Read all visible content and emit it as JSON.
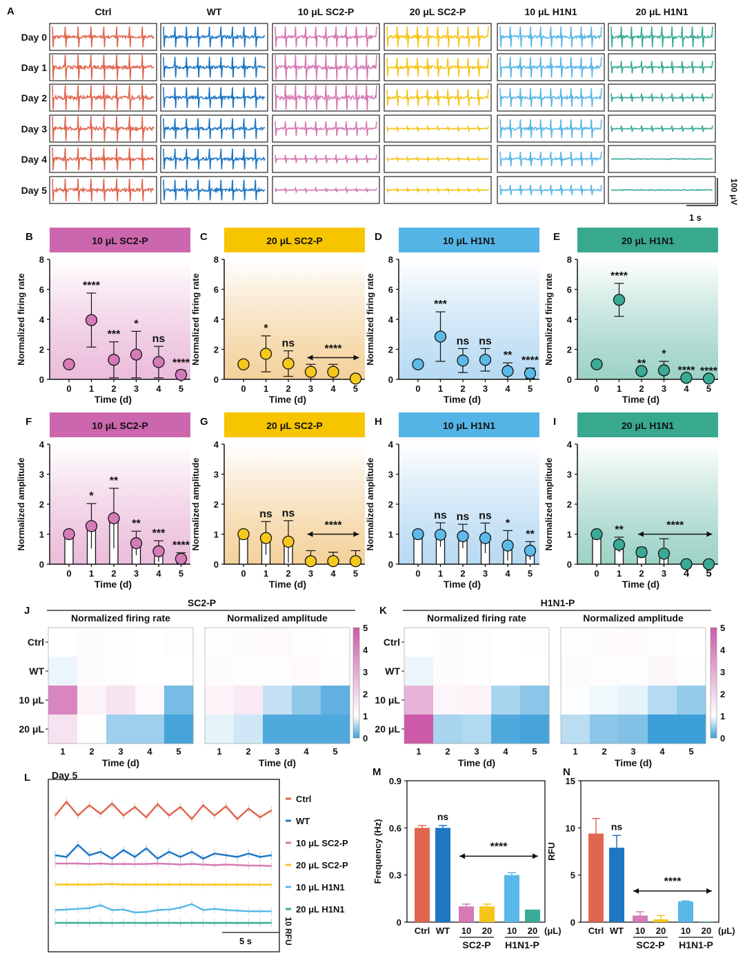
{
  "panel_letters": {
    "A": "A",
    "B": "B",
    "C": "C",
    "D": "D",
    "E": "E",
    "F": "F",
    "G": "G",
    "H": "H",
    "I": "I",
    "J": "J",
    "K": "K",
    "L": "L",
    "M": "M",
    "N": "N"
  },
  "colors": {
    "ctrl": "#e06650",
    "wt": "#1f77c4",
    "sc10": "#d67ab6",
    "sc20": "#f5c518",
    "h10": "#5ab8e8",
    "h20": "#3aab97",
    "heat_high": "#cc5aa8",
    "heat_low": "#3d9fd9",
    "heat_mid": "#ffffff"
  },
  "traces": {
    "columns": [
      "Ctrl",
      "WT",
      "10 μL SC2-P",
      "20 μL SC2-P",
      "10 μL H1N1",
      "20 μL H1N1"
    ],
    "rows": [
      "Day 0",
      "Day 1",
      "Day 2",
      "Day 3",
      "Day 4",
      "Day 5"
    ],
    "amplitude_levels": [
      [
        1.0,
        1.0,
        1.0,
        1.0,
        1.0,
        1.0
      ],
      [
        1.2,
        1.0,
        1.3,
        0.9,
        1.0,
        0.6
      ],
      [
        1.4,
        1.0,
        1.5,
        0.8,
        0.9,
        0.4
      ],
      [
        1.3,
        1.0,
        0.7,
        0.2,
        0.9,
        0.3
      ],
      [
        1.1,
        1.0,
        0.4,
        0.15,
        0.7,
        0.05
      ],
      [
        1.1,
        1.0,
        0.2,
        0.15,
        0.5,
        0.05
      ]
    ],
    "scale_voltage": "100 μV",
    "scale_time": "1 s"
  },
  "y_axis_labels": {
    "firing": "Normalized firing rate",
    "amplitude": "Normalized amplitude",
    "time": "Time (d)"
  },
  "chart_data": [
    {
      "id": "B",
      "type": "scatter",
      "title": "10 μL SC2-P",
      "xlabel": "Time (d)",
      "ylabel": "Normalized firing rate",
      "ylim": [
        0,
        8
      ],
      "x": [
        0,
        1,
        2,
        3,
        4,
        5
      ],
      "values": [
        1.0,
        3.95,
        1.3,
        1.65,
        1.15,
        0.3
      ],
      "err": [
        0,
        1.8,
        1.2,
        1.55,
        1.05,
        0.3
      ],
      "sig": [
        "",
        "****",
        "***",
        "*",
        "ns",
        "****"
      ]
    },
    {
      "id": "C",
      "type": "scatter",
      "title": "20 μL SC2-P",
      "xlabel": "Time (d)",
      "ylabel": "Normalized firing rate",
      "ylim": [
        0,
        8
      ],
      "x": [
        0,
        1,
        2,
        3,
        4,
        5
      ],
      "values": [
        1.0,
        1.7,
        1.05,
        0.5,
        0.5,
        0.05
      ],
      "err": [
        0,
        1.2,
        0.85,
        0.5,
        0.5,
        0.05
      ],
      "sig": [
        "",
        "*",
        "ns",
        "",
        "",
        ""
      ],
      "bracket": {
        "from": 3,
        "to": 5,
        "label": "****"
      }
    },
    {
      "id": "D",
      "type": "scatter",
      "title": "10 μL H1N1",
      "xlabel": "Time (d)",
      "ylabel": "Normalized firing rate",
      "ylim": [
        0,
        8
      ],
      "x": [
        0,
        1,
        2,
        3,
        4,
        5
      ],
      "values": [
        1.0,
        2.85,
        1.25,
        1.3,
        0.55,
        0.4
      ],
      "err": [
        0,
        1.65,
        0.8,
        0.75,
        0.55,
        0.35
      ],
      "sig": [
        "",
        "***",
        "ns",
        "ns",
        "**",
        "****"
      ]
    },
    {
      "id": "E",
      "type": "scatter",
      "title": "20 μL H1N1",
      "xlabel": "Time (d)",
      "ylabel": "Normalized firing rate",
      "ylim": [
        0,
        8
      ],
      "x": [
        0,
        1,
        2,
        3,
        4,
        5
      ],
      "values": [
        1.0,
        5.3,
        0.55,
        0.6,
        0.1,
        0.05
      ],
      "err": [
        0,
        1.1,
        0,
        0.6,
        0,
        0
      ],
      "sig": [
        "",
        "****",
        "**",
        "*",
        "****",
        "****"
      ]
    },
    {
      "id": "F",
      "type": "bar",
      "title": "10 μL SC2-P",
      "xlabel": "Time (d)",
      "ylabel": "Normalized amplitude",
      "ylim": [
        0,
        4
      ],
      "x": [
        0,
        1,
        2,
        3,
        4,
        5
      ],
      "values": [
        1.0,
        1.27,
        1.53,
        0.7,
        0.43,
        0.18
      ],
      "err": [
        0,
        0.75,
        1.0,
        0.4,
        0.35,
        0.2
      ],
      "sig": [
        "",
        "*",
        "**",
        "**",
        "***",
        "****"
      ]
    },
    {
      "id": "G",
      "type": "bar",
      "title": "20 μL SC2-P",
      "xlabel": "Time (d)",
      "ylabel": "Normalized amplitude",
      "ylim": [
        0,
        4
      ],
      "x": [
        0,
        1,
        2,
        3,
        4,
        5
      ],
      "values": [
        1.0,
        0.87,
        0.75,
        0.1,
        0.1,
        0.1
      ],
      "err": [
        0,
        0.55,
        0.7,
        0.35,
        0.3,
        0.35
      ],
      "sig": [
        "",
        "ns",
        "ns",
        "",
        "",
        ""
      ],
      "bracket": {
        "from": 3,
        "to": 5,
        "label": "****"
      }
    },
    {
      "id": "H",
      "type": "bar",
      "title": "10 μL H1N1",
      "xlabel": "Time (d)",
      "ylabel": "Normalized amplitude",
      "ylim": [
        0,
        4
      ],
      "x": [
        0,
        1,
        2,
        3,
        4,
        5
      ],
      "values": [
        1.0,
        0.98,
        0.93,
        0.87,
        0.62,
        0.45
      ],
      "err": [
        0,
        0.4,
        0.4,
        0.5,
        0.5,
        0.3
      ],
      "sig": [
        "",
        "ns",
        "ns",
        "ns",
        "*",
        "**"
      ]
    },
    {
      "id": "I",
      "type": "bar",
      "title": "20 μL H1N1",
      "xlabel": "Time (d)",
      "ylabel": "Normalized amplitude",
      "ylim": [
        0,
        4
      ],
      "x": [
        0,
        1,
        2,
        3,
        4,
        5
      ],
      "values": [
        1.0,
        0.65,
        0.4,
        0.35,
        0.0,
        0.0
      ],
      "err": [
        0,
        0.25,
        0.15,
        0.5,
        0,
        0
      ],
      "sig": [
        "",
        "**",
        "",
        "",
        "",
        ""
      ],
      "bracket": {
        "from": 2,
        "to": 5,
        "label": "****"
      },
      "bold_ticks": [
        4,
        5
      ]
    },
    {
      "id": "J",
      "type": "heatmap",
      "group_title": "SC2-P",
      "subtitles": [
        "Normalized firing rate",
        "Normalized amplitude"
      ],
      "rows": [
        "Ctrl",
        "WT",
        "10 μL",
        "20 μL"
      ],
      "x": [
        1,
        2,
        3,
        4,
        5
      ],
      "xlabel": "Time (d)",
      "matrices": [
        [
          [
            1.0,
            1.1,
            1.05,
            1.0,
            1.05
          ],
          [
            0.9,
            1.1,
            1.05,
            1.0,
            1.0
          ],
          [
            3.95,
            1.3,
            1.65,
            1.15,
            0.3
          ],
          [
            1.7,
            1.05,
            0.5,
            0.5,
            0.05
          ]
        ],
        [
          [
            1.05,
            1.1,
            1.15,
            1.05,
            1.0
          ],
          [
            1.1,
            1.05,
            1.05,
            1.15,
            1.05
          ],
          [
            1.27,
            1.53,
            0.7,
            0.43,
            0.18
          ],
          [
            0.87,
            0.75,
            0.1,
            0.1,
            0.1
          ]
        ]
      ],
      "colorbar": {
        "min": 0,
        "max": 5,
        "ticks": [
          0,
          1,
          2,
          3,
          4,
          5
        ]
      }
    },
    {
      "id": "K",
      "type": "heatmap",
      "group_title": "H1N1-P",
      "subtitles": [
        "Normalized firing rate",
        "Normalized amplitude"
      ],
      "rows": [
        "Ctrl",
        "WT",
        "10 μL",
        "20 μL"
      ],
      "x": [
        1,
        2,
        3,
        4,
        5
      ],
      "xlabel": "Time (d)",
      "matrices": [
        [
          [
            1.0,
            1.1,
            1.05,
            1.0,
            1.05
          ],
          [
            0.9,
            1.1,
            1.05,
            1.0,
            1.0
          ],
          [
            2.85,
            1.25,
            1.3,
            0.55,
            0.4
          ],
          [
            5.3,
            0.55,
            0.6,
            0.1,
            0.05
          ]
        ],
        [
          [
            1.05,
            1.1,
            1.15,
            1.05,
            1.0
          ],
          [
            1.1,
            1.05,
            1.05,
            1.2,
            1.05
          ],
          [
            0.98,
            0.93,
            0.87,
            0.62,
            0.45
          ],
          [
            0.65,
            0.4,
            0.35,
            0.0,
            0.0
          ]
        ]
      ],
      "colorbar": {
        "min": 0,
        "max": 5,
        "ticks": [
          0,
          1,
          2,
          3,
          4,
          5
        ]
      }
    },
    {
      "id": "L",
      "type": "line",
      "title": "Day 5",
      "series": [
        {
          "name": "Ctrl",
          "values": [
            0.55,
            0.95,
            0.55,
            0.85,
            0.6,
            0.9,
            0.55,
            0.8,
            0.5,
            0.88,
            0.55,
            0.8,
            0.45,
            0.85,
            0.55,
            0.82,
            0.45,
            0.75,
            0.5,
            0.7
          ]
        },
        {
          "name": "WT",
          "values": [
            0.5,
            0.45,
            0.8,
            0.5,
            0.6,
            0.4,
            0.65,
            0.45,
            0.7,
            0.4,
            0.6,
            0.45,
            0.6,
            0.4,
            0.55,
            0.5,
            0.45,
            0.55,
            0.45,
            0.5
          ]
        },
        {
          "name": "10 μL SC2-P",
          "values": [
            0.5,
            0.5,
            0.5,
            0.48,
            0.5,
            0.47,
            0.48,
            0.47,
            0.48,
            0.5,
            0.48,
            0.45,
            0.48,
            0.45,
            0.42,
            0.45,
            0.43,
            0.4,
            0.4,
            0.38
          ]
        },
        {
          "name": "20 μL SC2-P",
          "values": [
            0.5,
            0.5,
            0.52,
            0.5,
            0.52,
            0.55,
            0.5,
            0.5,
            0.52,
            0.5,
            0.52,
            0.5,
            0.5,
            0.48,
            0.5,
            0.48,
            0.5,
            0.48,
            0.48,
            0.48
          ]
        },
        {
          "name": "10 μL H1N1",
          "values": [
            0.5,
            0.52,
            0.55,
            0.58,
            0.7,
            0.5,
            0.52,
            0.4,
            0.42,
            0.5,
            0.52,
            0.6,
            0.75,
            0.5,
            0.55,
            0.5,
            0.48,
            0.45,
            0.45,
            0.45
          ]
        },
        {
          "name": "20 μL H1N1",
          "values": [
            0.5,
            0.5,
            0.5,
            0.48,
            0.5,
            0.48,
            0.5,
            0.5,
            0.48,
            0.5,
            0.5,
            0.48,
            0.5,
            0.5,
            0.48,
            0.5,
            0.48,
            0.5,
            0.48,
            0.5
          ]
        }
      ],
      "scale_x": "5 s",
      "scale_y": "10 RFU"
    },
    {
      "id": "M",
      "type": "bar",
      "xlabel": "",
      "ylabel": "Frequency (Hz)",
      "ylim": [
        0,
        0.9
      ],
      "yticks": [
        0.0,
        0.3,
        0.6,
        0.9
      ],
      "categories": [
        "Ctrl",
        "WT",
        "10",
        "20",
        "10",
        "20"
      ],
      "values": [
        0.6,
        0.6,
        0.1,
        0.1,
        0.3,
        0.08
      ],
      "err": [
        0.015,
        0.015,
        0.015,
        0.015,
        0.015,
        0
      ],
      "group_labels": [
        "SC2-P",
        "H1N1-P"
      ],
      "unit": "(μL)",
      "sig_label": "ns",
      "bracket_label": "****"
    },
    {
      "id": "N",
      "type": "bar",
      "xlabel": "",
      "ylabel": "RFU",
      "ylim": [
        0,
        15
      ],
      "yticks": [
        0,
        5,
        10,
        15
      ],
      "categories": [
        "Ctrl",
        "WT",
        "10",
        "20",
        "10",
        "20"
      ],
      "values": [
        9.4,
        7.9,
        0.7,
        0.3,
        2.2,
        0.05
      ],
      "err": [
        1.6,
        1.3,
        0.4,
        0.4,
        0.05,
        0
      ],
      "group_labels": [
        "SC2-P",
        "H1N1-P"
      ],
      "unit": "(μL)",
      "sig_label": "ns",
      "bracket_label": "****"
    }
  ]
}
